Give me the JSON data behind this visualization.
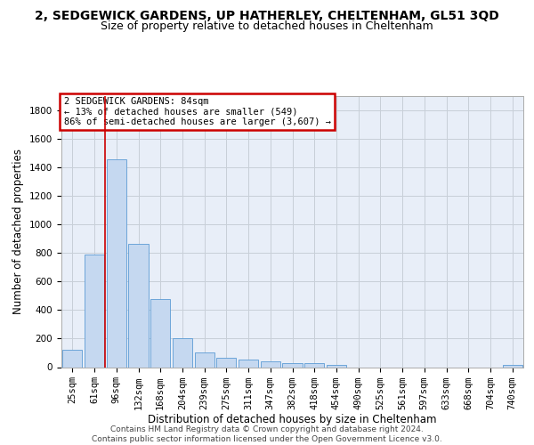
{
  "title_line1": "2, SEDGEWICK GARDENS, UP HATHERLEY, CHELTENHAM, GL51 3QD",
  "title_line2": "Size of property relative to detached houses in Cheltenham",
  "xlabel": "Distribution of detached houses by size in Cheltenham",
  "ylabel": "Number of detached properties",
  "footer_line1": "Contains HM Land Registry data © Crown copyright and database right 2024.",
  "footer_line2": "Contains public sector information licensed under the Open Government Licence v3.0.",
  "categories": [
    "25sqm",
    "61sqm",
    "96sqm",
    "132sqm",
    "168sqm",
    "204sqm",
    "239sqm",
    "275sqm",
    "311sqm",
    "347sqm",
    "382sqm",
    "418sqm",
    "454sqm",
    "490sqm",
    "525sqm",
    "561sqm",
    "597sqm",
    "633sqm",
    "668sqm",
    "704sqm",
    "740sqm"
  ],
  "values": [
    120,
    790,
    1455,
    860,
    475,
    200,
    100,
    65,
    50,
    40,
    30,
    25,
    15,
    0,
    0,
    0,
    0,
    0,
    0,
    0,
    15
  ],
  "bar_color": "#c5d8f0",
  "bar_edge_color": "#5b9bd5",
  "property_line_x": 1.5,
  "annotation_line1": "2 SEDGEWICK GARDENS: 84sqm",
  "annotation_line2": "← 13% of detached houses are smaller (549)",
  "annotation_line3": "86% of semi-detached houses are larger (3,607) →",
  "annotation_box_edge_color": "#cc0000",
  "vline_color": "#cc0000",
  "ylim": [
    0,
    1900
  ],
  "yticks": [
    0,
    200,
    400,
    600,
    800,
    1000,
    1200,
    1400,
    1600,
    1800
  ],
  "plot_bg_color": "#e8eef8",
  "grid_color": "#c8cfd8",
  "title1_fontsize": 10,
  "title2_fontsize": 9,
  "axis_label_fontsize": 8.5,
  "tick_fontsize": 7.5,
  "ann_fontsize": 7.5,
  "footer_fontsize": 6.5
}
